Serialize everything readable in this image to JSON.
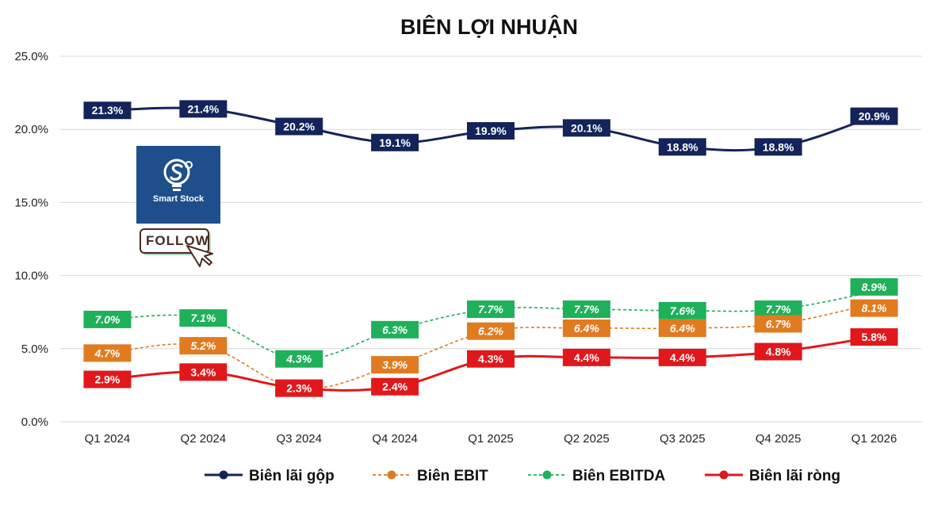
{
  "chart_data": {
    "type": "line",
    "title": "BIÊN LỢI NHUẬN",
    "categories": [
      "Q1 2024",
      "Q2 2024",
      "Q3 2024",
      "Q4 2024",
      "Q1 2025",
      "Q2 2025",
      "Q3 2025",
      "Q4 2025",
      "Q1 2026"
    ],
    "ylim": [
      0,
      25
    ],
    "yticks": [
      "0.0%",
      "5.0%",
      "10.0%",
      "15.0%",
      "20.0%",
      "25.0%"
    ],
    "grid": true,
    "legend_position": "bottom",
    "series": [
      {
        "key": "gross",
        "name": "Biên lãi gộp",
        "color": "#14245a",
        "style": "solid",
        "values": [
          21.3,
          21.4,
          20.2,
          19.1,
          19.9,
          20.1,
          18.8,
          18.8,
          20.9
        ],
        "labels": [
          "21.3%",
          "21.4%",
          "20.2%",
          "19.1%",
          "19.9%",
          "20.1%",
          "18.8%",
          "18.8%",
          "20.9%"
        ]
      },
      {
        "key": "ebit",
        "name": "Biên EBIT",
        "color": "#e07b1f",
        "style": "dashed",
        "values": [
          4.7,
          5.2,
          2.3,
          3.9,
          6.2,
          6.4,
          6.4,
          6.7,
          8.1
        ],
        "labels": [
          "4.7%",
          "5.2%",
          "2.3%",
          "3.9%",
          "6.2%",
          "6.4%",
          "6.4%",
          "6.7%",
          "8.1%"
        ]
      },
      {
        "key": "ebitda",
        "name": "Biên EBITDA",
        "color": "#1fb05a",
        "style": "dashed",
        "values": [
          7.0,
          7.1,
          4.3,
          6.3,
          7.7,
          7.7,
          7.6,
          7.7,
          8.9
        ],
        "labels": [
          "7.0%",
          "7.1%",
          "4.3%",
          "6.3%",
          "7.7%",
          "7.7%",
          "7.6%",
          "7.7%",
          "8.9%"
        ]
      },
      {
        "key": "net",
        "name": "Biên lãi ròng",
        "color": "#e0181c",
        "style": "solid",
        "values": [
          2.9,
          3.4,
          2.3,
          2.4,
          4.3,
          4.4,
          4.4,
          4.8,
          5.8
        ],
        "labels": [
          "2.9%",
          "3.4%",
          "2.3%",
          "2.4%",
          "4.3%",
          "4.4%",
          "4.4%",
          "4.8%",
          "5.8%"
        ]
      }
    ]
  },
  "watermark": {
    "brand": "Smart Stock",
    "follow_label": "FOLLOW",
    "logo_color": "#1e4f8c"
  }
}
